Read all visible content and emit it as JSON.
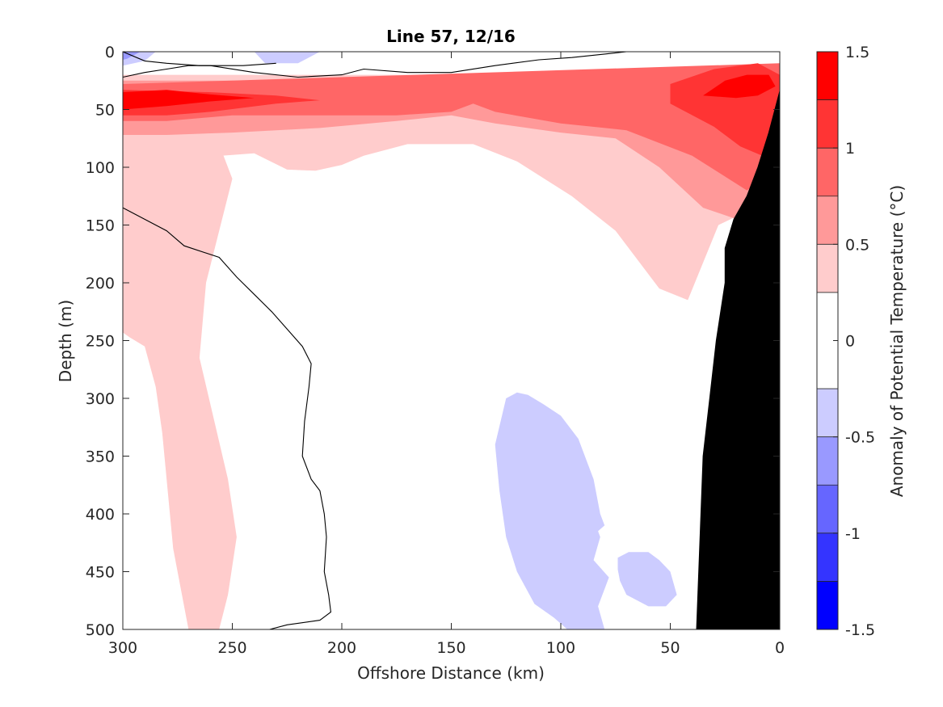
{
  "chart_data": {
    "type": "contour",
    "title": "Line 57, 12/16",
    "xlabel": "Offshore Distance (km)",
    "ylabel": "Depth (m)",
    "colorbar_label": "Anomaly of Potential Temperature (°C)",
    "x_ticks": [
      300,
      250,
      200,
      150,
      100,
      50,
      0
    ],
    "y_ticks": [
      0,
      50,
      100,
      150,
      200,
      250,
      300,
      350,
      400,
      450,
      500
    ],
    "xlim": [
      300,
      0
    ],
    "ylim": [
      0,
      500
    ],
    "x_reversed": true,
    "y_reversed": true,
    "colorbar_ticks": [
      1.5,
      1,
      0.5,
      0,
      -0.5,
      -1,
      -1.5
    ],
    "clim": [
      -1.5,
      1.5
    ],
    "levels": [
      -1.5,
      -1.25,
      -1.0,
      -0.75,
      -0.5,
      -0.25,
      0.25,
      0.5,
      0.75,
      1.0,
      1.25,
      1.5
    ],
    "level_colors": [
      "#0000ff",
      "#3434ff",
      "#6666ff",
      "#9999ff",
      "#ccccff",
      "#ffffff",
      "#ffcccc",
      "#ff9999",
      "#ff6666",
      "#ff3434",
      "#ff0000"
    ],
    "zero_contour_color": "#000000",
    "bathymetry_color": "#000000",
    "regions": [
      {
        "level": 0.5,
        "color": "#ffcccc",
        "points": [
          [
            300,
            20
          ],
          [
            0,
            20
          ],
          [
            0,
            150
          ],
          [
            17,
            140
          ],
          [
            28,
            150
          ],
          [
            42,
            215
          ],
          [
            55,
            205
          ],
          [
            75,
            155
          ],
          [
            95,
            125
          ],
          [
            120,
            95
          ],
          [
            140,
            80
          ],
          [
            170,
            80
          ],
          [
            190,
            90
          ],
          [
            200,
            98
          ],
          [
            212,
            103
          ],
          [
            225,
            102
          ],
          [
            240,
            88
          ],
          [
            255,
            90
          ],
          [
            300,
            85
          ]
        ]
      },
      {
        "level": 0.5,
        "color": "#ffcccc",
        "points": [
          [
            300,
            85
          ],
          [
            255,
            85
          ],
          [
            250,
            110
          ],
          [
            258,
            170
          ],
          [
            262,
            200
          ],
          [
            265,
            265
          ],
          [
            252,
            370
          ],
          [
            248,
            420
          ],
          [
            252,
            470
          ],
          [
            256,
            500
          ],
          [
            270,
            500
          ],
          [
            277,
            430
          ],
          [
            280,
            370
          ],
          [
            282,
            330
          ],
          [
            285,
            290
          ],
          [
            290,
            255
          ],
          [
            297,
            247
          ],
          [
            300,
            243
          ]
        ]
      },
      {
        "level": 0.5,
        "color": "#ffcccc",
        "points": [
          [
            300,
            130
          ],
          [
            297,
            138
          ],
          [
            300,
            143
          ]
        ]
      },
      {
        "level": 0.75,
        "color": "#ff9999",
        "points": [
          [
            300,
            25
          ],
          [
            0,
            25
          ],
          [
            0,
            115
          ],
          [
            15,
            148
          ],
          [
            35,
            135
          ],
          [
            55,
            100
          ],
          [
            75,
            75
          ],
          [
            100,
            70
          ],
          [
            130,
            62
          ],
          [
            150,
            55
          ],
          [
            175,
            60
          ],
          [
            210,
            66
          ],
          [
            250,
            70
          ],
          [
            280,
            72
          ],
          [
            300,
            72
          ]
        ]
      },
      {
        "level": 1.0,
        "color": "#ff6666",
        "points": [
          [
            300,
            28
          ],
          [
            0,
            10
          ],
          [
            0,
            100
          ],
          [
            15,
            120
          ],
          [
            40,
            90
          ],
          [
            70,
            68
          ],
          [
            100,
            62
          ],
          [
            130,
            52
          ],
          [
            140,
            45
          ],
          [
            150,
            52
          ],
          [
            175,
            55
          ],
          [
            210,
            55
          ],
          [
            250,
            55
          ],
          [
            280,
            60
          ],
          [
            300,
            60
          ]
        ]
      },
      {
        "level": 1.25,
        "color": "#ff3434",
        "points": [
          [
            300,
            33
          ],
          [
            260,
            35
          ],
          [
            230,
            38
          ],
          [
            210,
            42
          ],
          [
            230,
            45
          ],
          [
            260,
            52
          ],
          [
            280,
            55
          ],
          [
            300,
            55
          ]
        ]
      },
      {
        "level": 1.25,
        "color": "#ff3434",
        "points": [
          [
            50,
            28
          ],
          [
            30,
            15
          ],
          [
            10,
            10
          ],
          [
            0,
            20
          ],
          [
            0,
            95
          ],
          [
            8,
            90
          ],
          [
            18,
            82
          ],
          [
            30,
            65
          ],
          [
            50,
            45
          ]
        ]
      },
      {
        "level": 1.5,
        "color": "#ff0000",
        "points": [
          [
            300,
            35
          ],
          [
            280,
            33
          ],
          [
            260,
            37
          ],
          [
            240,
            40
          ],
          [
            260,
            43
          ],
          [
            280,
            47
          ],
          [
            300,
            50
          ]
        ]
      },
      {
        "level": 1.5,
        "color": "#ff0000",
        "points": [
          [
            35,
            38
          ],
          [
            25,
            25
          ],
          [
            15,
            20
          ],
          [
            5,
            20
          ],
          [
            2,
            30
          ],
          [
            10,
            38
          ],
          [
            20,
            40
          ]
        ]
      },
      {
        "level": -0.25,
        "color": "#ccccff",
        "points": [
          [
            300,
            0
          ],
          [
            285,
            0
          ],
          [
            290,
            8
          ],
          [
            300,
            12
          ]
        ]
      },
      {
        "level": -0.5,
        "color": "#9999ff",
        "points": [
          [
            300,
            0
          ],
          [
            292,
            0
          ],
          [
            298,
            6
          ],
          [
            300,
            7
          ]
        ]
      },
      {
        "level": -0.25,
        "color": "#ccccff",
        "points": [
          [
            240,
            0
          ],
          [
            210,
            0
          ],
          [
            220,
            10
          ],
          [
            235,
            10
          ]
        ]
      },
      {
        "level": -0.25,
        "color": "#ccccff",
        "points": [
          [
            125,
            300
          ],
          [
            120,
            295
          ],
          [
            115,
            297
          ],
          [
            108,
            305
          ],
          [
            100,
            315
          ],
          [
            92,
            335
          ],
          [
            85,
            370
          ],
          [
            82,
            400
          ],
          [
            80,
            410
          ],
          [
            83,
            415
          ],
          [
            82,
            420
          ],
          [
            85,
            440
          ],
          [
            78,
            455
          ],
          [
            80,
            465
          ],
          [
            83,
            480
          ],
          [
            80,
            500
          ],
          [
            97,
            500
          ],
          [
            103,
            490
          ],
          [
            112,
            478
          ],
          [
            120,
            450
          ],
          [
            125,
            420
          ],
          [
            128,
            380
          ],
          [
            130,
            340
          ]
        ]
      },
      {
        "level": -0.25,
        "color": "#ccccff",
        "points": [
          [
            74,
            438
          ],
          [
            69,
            433
          ],
          [
            60,
            433
          ],
          [
            55,
            440
          ],
          [
            50,
            450
          ],
          [
            47,
            470
          ],
          [
            52,
            480
          ],
          [
            60,
            480
          ],
          [
            70,
            470
          ],
          [
            73,
            458
          ],
          [
            74,
            448
          ]
        ]
      }
    ],
    "zero_contours": [
      [
        [
          300,
          22
        ],
        [
          290,
          18
        ],
        [
          280,
          15
        ],
        [
          270,
          12
        ],
        [
          260,
          12
        ],
        [
          240,
          18
        ],
        [
          220,
          22
        ],
        [
          200,
          20
        ],
        [
          190,
          15
        ],
        [
          170,
          18
        ],
        [
          150,
          18
        ],
        [
          130,
          12
        ],
        [
          110,
          7
        ],
        [
          95,
          5
        ],
        [
          80,
          2
        ],
        [
          70,
          0
        ]
      ],
      [
        [
          300,
          0
        ],
        [
          290,
          8
        ],
        [
          280,
          10
        ],
        [
          265,
          12
        ],
        [
          245,
          12
        ],
        [
          230,
          10
        ]
      ],
      [
        [
          233,
          500
        ],
        [
          225,
          496
        ],
        [
          210,
          492
        ],
        [
          205,
          485
        ],
        [
          206,
          470
        ],
        [
          208,
          450
        ],
        [
          207,
          420
        ],
        [
          208,
          400
        ],
        [
          210,
          380
        ],
        [
          214,
          370
        ],
        [
          218,
          350
        ],
        [
          217,
          320
        ],
        [
          215,
          290
        ],
        [
          214,
          270
        ],
        [
          218,
          255
        ],
        [
          225,
          240
        ],
        [
          232,
          225
        ],
        [
          240,
          210
        ],
        [
          248,
          195
        ],
        [
          256,
          178
        ],
        [
          272,
          168
        ],
        [
          280,
          155
        ],
        [
          290,
          145
        ],
        [
          300,
          135
        ],
        [
          310,
          125
        ]
      ]
    ],
    "bathymetry": [
      [
        0,
        34
      ],
      [
        5,
        70
      ],
      [
        10,
        100
      ],
      [
        15,
        125
      ],
      [
        21,
        145
      ],
      [
        25,
        170
      ],
      [
        25,
        200
      ],
      [
        29,
        250
      ],
      [
        32,
        300
      ],
      [
        35,
        350
      ],
      [
        36,
        400
      ],
      [
        37,
        450
      ],
      [
        38,
        500
      ],
      [
        0,
        500
      ]
    ]
  }
}
